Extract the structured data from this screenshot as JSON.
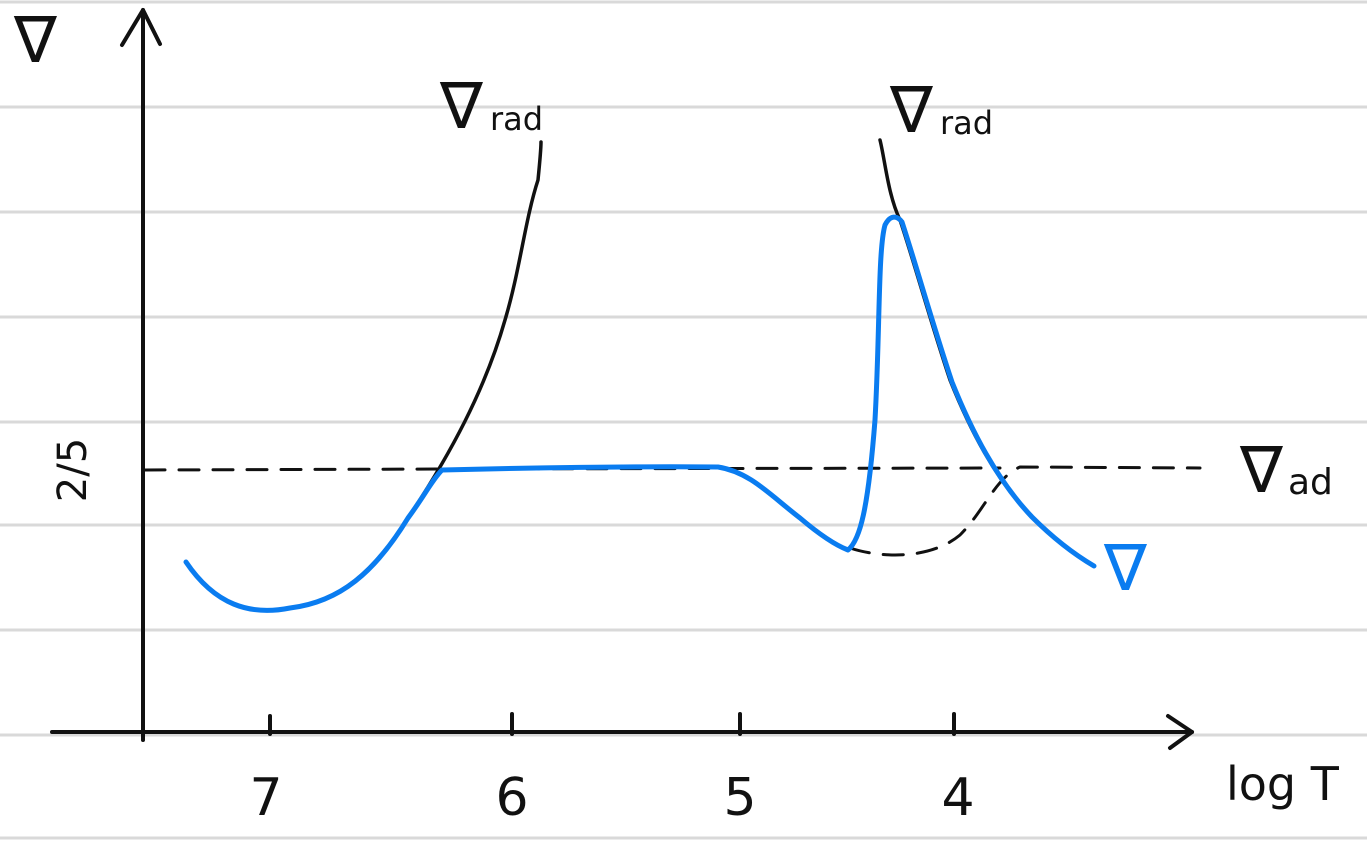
{
  "chart_data": {
    "type": "line",
    "x_axis": {
      "label": "log T",
      "reversed": true,
      "ticks": [
        7,
        6,
        5,
        4
      ],
      "tick_labels": [
        "7",
        "6",
        "5",
        "4"
      ]
    },
    "y_axis": {
      "label": "∇",
      "reference_tick_label": "2/5",
      "reference_value": 0.4
    },
    "annotations": [
      {
        "text": "∇rad",
        "symbol": "∇",
        "sub": "rad"
      },
      {
        "text": "∇rad",
        "symbol": "∇",
        "sub": "rad"
      },
      {
        "text": "∇ad",
        "symbol": "∇",
        "sub": "ad"
      },
      {
        "text": "∇",
        "symbol": "∇",
        "sub": ""
      }
    ],
    "series": [
      {
        "name": "∇rad",
        "style": "solid",
        "color": "#111111"
      },
      {
        "name": "∇ad",
        "style": "dashed",
        "color": "#111111",
        "value": 0.4
      },
      {
        "name": "∇",
        "style": "solid",
        "color": "#0a7cf0"
      }
    ]
  }
}
